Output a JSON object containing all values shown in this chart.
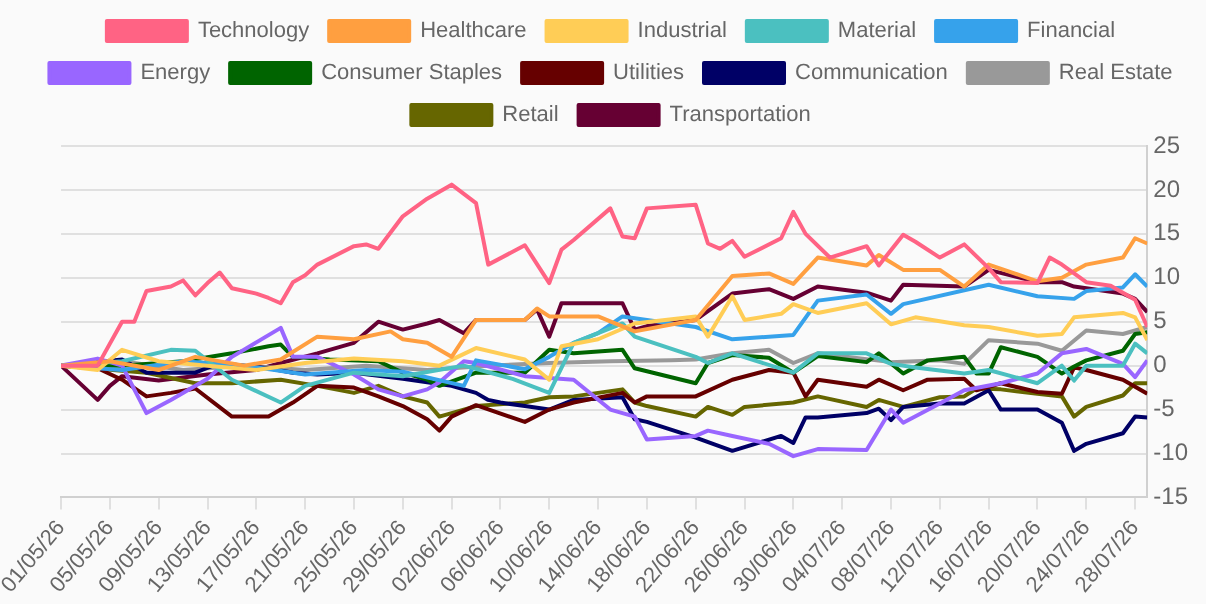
{
  "chart_data": {
    "type": "line",
    "legend": "top",
    "grid": "y",
    "marker": "none",
    "line_style": "solid",
    "xlim": [
      "--05-01",
      "--07-29"
    ],
    "xticks": [
      {
        "value": "--05-01",
        "label": "01/05/26"
      },
      {
        "value": "--05-05",
        "label": "05/05/26"
      },
      {
        "value": "--05-09",
        "label": "09/05/26"
      },
      {
        "value": "--05-13",
        "label": "13/05/26"
      },
      {
        "value": "--05-17",
        "label": "17/05/26"
      },
      {
        "value": "--05-21",
        "label": "21/05/26"
      },
      {
        "value": "--05-25",
        "label": "25/05/26"
      },
      {
        "value": "--05-29",
        "label": "29/05/26"
      },
      {
        "value": "--06-02",
        "label": "02/06/26"
      },
      {
        "value": "--06-06",
        "label": "06/06/26"
      },
      {
        "value": "--06-10",
        "label": "10/06/26"
      },
      {
        "value": "--06-14",
        "label": "14/06/26"
      },
      {
        "value": "--06-18",
        "label": "18/06/26"
      },
      {
        "value": "--06-22",
        "label": "22/06/26"
      },
      {
        "value": "--06-26",
        "label": "26/06/26"
      },
      {
        "value": "--06-30",
        "label": "30/06/26"
      },
      {
        "value": "--07-04",
        "label": "04/07/26"
      },
      {
        "value": "--07-08",
        "label": "08/07/26"
      },
      {
        "value": "--07-12",
        "label": "12/07/26"
      },
      {
        "value": "--07-16",
        "label": "16/07/26"
      },
      {
        "value": "--07-20",
        "label": "20/07/26"
      },
      {
        "value": "--07-24",
        "label": "24/07/26"
      },
      {
        "value": "--07-28",
        "label": "28/07/26"
      }
    ],
    "ylim": [
      -15,
      25
    ],
    "yticks": [
      -15,
      -10,
      -5,
      0,
      5,
      10,
      15,
      20,
      25
    ],
    "series": [
      {
        "name": "Technology",
        "color": "#ff6384",
        "x": [
          "--05-01",
          "--05-04",
          "--05-06",
          "--05-07",
          "--05-08",
          "--05-10",
          "--05-11",
          "--05-12",
          "--05-13",
          "--05-14",
          "--05-15",
          "--05-17",
          "--05-18",
          "--05-19",
          "--05-20",
          "--05-21",
          "--05-22",
          "--05-25",
          "--05-26",
          "--05-27",
          "--05-29",
          "--05-31",
          "--06-01",
          "--06-02",
          "--06-04",
          "--06-05",
          "--06-08",
          "--06-10",
          "--06-11",
          "--06-12",
          "--06-15",
          "--06-16",
          "--06-17",
          "--06-18",
          "--06-22",
          "--06-23",
          "--06-24",
          "--06-25",
          "--06-26",
          "--06-29",
          "--06-30",
          "--07-01",
          "--07-03",
          "--07-06",
          "--07-07",
          "--07-09",
          "--07-10",
          "--07-12",
          "--07-14",
          "--07-16",
          "--07-17",
          "--07-20",
          "--07-21",
          "--07-22",
          "--07-24",
          "--07-26",
          "--07-28",
          "--07-29"
        ],
        "values": [
          0,
          0,
          5,
          5,
          8.5,
          9,
          9.7,
          8,
          9.4,
          10.6,
          8.8,
          8.2,
          7.7,
          7.1,
          9.5,
          10.3,
          11.5,
          13.6,
          13.8,
          13.3,
          17,
          19,
          19.8,
          20.6,
          18.5,
          11.5,
          13.7,
          9.4,
          13.2,
          14.3,
          17.9,
          14.7,
          14.5,
          17.9,
          18.3,
          13.9,
          13.3,
          14.2,
          12.4,
          14.5,
          17.5,
          15,
          12.3,
          13.6,
          11.4,
          14.9,
          14.1,
          12.3,
          13.8,
          11.1,
          9.5,
          9.4,
          12.3,
          11.5,
          9.5,
          9.1,
          7.5,
          4.4
        ]
      },
      {
        "name": "Healthcare",
        "color": "#ff9f40",
        "x": [
          "--05-01",
          "--05-05",
          "--05-09",
          "--05-12",
          "--05-16",
          "--05-19",
          "--05-22",
          "--05-25",
          "--05-28",
          "--05-29",
          "--05-31",
          "--06-02",
          "--06-04",
          "--06-08",
          "--06-09",
          "--06-10",
          "--06-14",
          "--06-17",
          "--06-22",
          "--06-25",
          "--06-28",
          "--06-30",
          "--07-02",
          "--07-06",
          "--07-07",
          "--07-09",
          "--07-12",
          "--07-14",
          "--07-16",
          "--07-20",
          "--07-22",
          "--07-24",
          "--07-27",
          "--07-28",
          "--07-29"
        ],
        "values": [
          0,
          0.5,
          -0.5,
          1,
          0,
          0.7,
          3.3,
          3,
          3.9,
          3,
          2.6,
          1,
          5.2,
          5.2,
          6.5,
          5.6,
          5.6,
          3.9,
          5.2,
          10.2,
          10.5,
          9.3,
          12.3,
          11.4,
          12.6,
          10.9,
          10.9,
          9,
          11.5,
          9.6,
          10,
          11.5,
          12.3,
          14.5,
          13.9
        ]
      },
      {
        "name": "Industrial",
        "color": "#ffcd56",
        "x": [
          "--05-01",
          "--05-04",
          "--05-06",
          "--05-09",
          "--05-13",
          "--05-17",
          "--05-21",
          "--05-25",
          "--05-29",
          "--06-01",
          "--06-04",
          "--06-08",
          "--06-10",
          "--06-11",
          "--06-14",
          "--06-17",
          "--06-22",
          "--06-23",
          "--06-25",
          "--06-26",
          "--06-29",
          "--06-30",
          "--07-02",
          "--07-06",
          "--07-08",
          "--07-10",
          "--07-14",
          "--07-16",
          "--07-20",
          "--07-22",
          "--07-23",
          "--07-27",
          "--07-28",
          "--07-29"
        ],
        "values": [
          0,
          -0.5,
          1.8,
          0.5,
          0,
          -0.5,
          0.3,
          0.8,
          0.5,
          0,
          2,
          0.7,
          -1.6,
          2.2,
          3,
          4.8,
          5.6,
          3.3,
          7.9,
          5.2,
          5.9,
          7,
          6,
          7.1,
          4.7,
          5.5,
          4.6,
          4.4,
          3.4,
          3.6,
          5.5,
          6,
          5.5,
          2.9
        ]
      },
      {
        "name": "Material",
        "color": "#4bc0c0",
        "x": [
          "--05-01",
          "--05-06",
          "--05-10",
          "--05-12",
          "--05-15",
          "--05-19",
          "--05-21",
          "--05-25",
          "--05-29",
          "--06-03",
          "--06-07",
          "--06-10",
          "--06-12",
          "--06-16",
          "--06-17",
          "--06-22",
          "--06-23",
          "--06-25",
          "--06-30",
          "--07-02",
          "--07-06",
          "--07-08",
          "--07-10",
          "--07-14",
          "--07-16",
          "--07-20",
          "--07-22",
          "--07-23",
          "--07-24",
          "--07-27",
          "--07-28",
          "--07-29"
        ],
        "values": [
          0,
          0.5,
          1.8,
          1.7,
          -1.6,
          -4.2,
          -2.3,
          -0.8,
          -1.2,
          0,
          -1.5,
          -3.1,
          2.6,
          4.8,
          3.3,
          1,
          0.3,
          1.4,
          -0.8,
          1.4,
          1.4,
          0.2,
          -0.2,
          -0.9,
          -0.5,
          -2,
          0,
          -1.7,
          0,
          0,
          2.5,
          1.4
        ]
      },
      {
        "name": "Financial",
        "color": "#36a2eb",
        "x": [
          "--05-01",
          "--05-06",
          "--05-11",
          "--05-16",
          "--05-21",
          "--05-26",
          "--05-29",
          "--06-03",
          "--06-04",
          "--06-08",
          "--06-10",
          "--06-12",
          "--06-14",
          "--06-16",
          "--06-22",
          "--06-25",
          "--06-30",
          "--07-02",
          "--07-06",
          "--07-08",
          "--07-09",
          "--07-16",
          "--07-20",
          "--07-23",
          "--07-24",
          "--07-27",
          "--07-28",
          "--07-29"
        ],
        "values": [
          0,
          -0.5,
          0.5,
          0,
          -1,
          -0.5,
          -0.7,
          -2.3,
          0.6,
          -0.4,
          1,
          2.6,
          3.7,
          5.6,
          4.4,
          3,
          3.5,
          7.4,
          8.1,
          5.9,
          7,
          9.2,
          7.9,
          7.6,
          8.5,
          8.9,
          10.4,
          9
        ]
      },
      {
        "name": "Energy",
        "color": "#9966ff",
        "x": [
          "--05-01",
          "--05-04",
          "--05-06",
          "--05-08",
          "--05-10",
          "--05-13",
          "--05-15",
          "--05-19",
          "--05-20",
          "--05-22",
          "--05-25",
          "--05-27",
          "--05-29",
          "--05-31",
          "--06-01",
          "--06-03",
          "--06-04",
          "--06-08",
          "--06-12",
          "--06-15",
          "--06-17",
          "--06-18",
          "--06-22",
          "--06-23",
          "--06-25",
          "--06-28",
          "--06-30",
          "--07-02",
          "--07-06",
          "--07-07",
          "--07-08",
          "--07-09",
          "--07-12",
          "--07-14",
          "--07-17",
          "--07-20",
          "--07-22",
          "--07-24",
          "--07-27",
          "--07-28",
          "--07-29"
        ],
        "values": [
          0,
          0.8,
          0,
          -5.4,
          -3.9,
          -1.5,
          1,
          4.3,
          1,
          1,
          -1,
          -2.7,
          -3.5,
          -2.7,
          -1.9,
          0.5,
          0.3,
          -1.2,
          -1.6,
          -5,
          -5.8,
          -8.4,
          -8,
          -7.4,
          -8,
          -8.9,
          -10.3,
          -9.5,
          -9.6,
          -7.3,
          -5,
          -6.5,
          -4.3,
          -2.8,
          -2,
          -0.9,
          1.4,
          1.9,
          0.2,
          -1.3,
          0.6
        ]
      },
      {
        "name": "Consumer Staples",
        "color": "#006400",
        "x": [
          "--05-01",
          "--05-06",
          "--05-11",
          "--05-15",
          "--05-18",
          "--05-19",
          "--05-20",
          "--05-23",
          "--05-27",
          "--05-29",
          "--05-31",
          "--06-01",
          "--06-04",
          "--06-08",
          "--06-10",
          "--06-12",
          "--06-16",
          "--06-17",
          "--06-22",
          "--06-23",
          "--06-25",
          "--06-28",
          "--06-30",
          "--07-02",
          "--07-06",
          "--07-07",
          "--07-09",
          "--07-11",
          "--07-14",
          "--07-15",
          "--07-16",
          "--07-17",
          "--07-20",
          "--07-22",
          "--07-23",
          "--07-24",
          "--07-27",
          "--07-28",
          "--07-29"
        ],
        "values": [
          0,
          0,
          0.5,
          1.4,
          2.2,
          2.4,
          1,
          0.7,
          0.5,
          -0.8,
          -1.6,
          -2.3,
          -0.8,
          -0.8,
          1.8,
          1.4,
          1.8,
          -0.3,
          -2,
          0.3,
          1.2,
          0.9,
          -0.8,
          1.1,
          0.4,
          1.4,
          -0.9,
          0.6,
          1,
          -0.9,
          -0.9,
          2.1,
          1,
          -0.9,
          -0.1,
          0.6,
          1.7,
          3.6,
          3.8
        ]
      },
      {
        "name": "Utilities",
        "color": "#660000",
        "x": [
          "--05-01",
          "--05-04",
          "--05-06",
          "--05-08",
          "--05-10",
          "--05-12",
          "--05-15",
          "--05-18",
          "--05-20",
          "--05-22",
          "--05-25",
          "--05-27",
          "--05-29",
          "--05-31",
          "--06-01",
          "--06-02",
          "--06-04",
          "--06-08",
          "--06-10",
          "--06-12",
          "--06-16",
          "--06-17",
          "--06-18",
          "--06-22",
          "--06-25",
          "--06-28",
          "--06-30",
          "--07-01",
          "--07-02",
          "--07-06",
          "--07-07",
          "--07-09",
          "--07-11",
          "--07-14",
          "--07-15",
          "--07-17",
          "--07-20",
          "--07-22",
          "--07-23",
          "--07-24",
          "--07-27",
          "--07-29"
        ],
        "values": [
          0,
          -0.3,
          -1.6,
          -3.5,
          -3.1,
          -2.6,
          -5.8,
          -5.8,
          -4.2,
          -2.3,
          -2.5,
          -3.5,
          -4.6,
          -6.1,
          -7.4,
          -5.8,
          -4.5,
          -6.4,
          -5,
          -4.2,
          -3.1,
          -4.2,
          -3.5,
          -3.5,
          -1.6,
          -0.5,
          -0.8,
          -3.5,
          -1.6,
          -2.4,
          -1.6,
          -2.8,
          -1.6,
          -1.5,
          -2.8,
          -2,
          -3,
          -3.2,
          -0.2,
          -0.5,
          -1.6,
          -3.2
        ]
      },
      {
        "name": "Communication",
        "color": "#000066",
        "x": [
          "--05-01",
          "--05-06",
          "--05-08",
          "--05-12",
          "--05-14",
          "--05-18",
          "--05-20",
          "--05-22",
          "--05-25",
          "--05-29",
          "--05-31",
          "--06-02",
          "--06-04",
          "--06-05",
          "--06-06",
          "--06-08",
          "--06-10",
          "--06-12",
          "--06-16",
          "--06-17",
          "--06-18",
          "--06-22",
          "--06-25",
          "--06-29",
          "--06-30",
          "--07-01",
          "--07-02",
          "--07-06",
          "--07-07",
          "--07-08",
          "--07-09",
          "--07-12",
          "--07-14",
          "--07-16",
          "--07-17",
          "--07-20",
          "--07-22",
          "--07-23",
          "--07-24",
          "--07-27",
          "--07-28",
          "--07-29"
        ],
        "values": [
          0,
          0.7,
          -0.8,
          -0.8,
          0.3,
          -0.3,
          -0.8,
          -1,
          -0.8,
          -1.5,
          -1.9,
          -2.3,
          -3.1,
          -3.9,
          -4.2,
          -4.6,
          -5,
          -3.9,
          -3.6,
          -6.1,
          -6.4,
          -8.2,
          -9.7,
          -8,
          -8.8,
          -5.9,
          -5.9,
          -5.4,
          -4.9,
          -6.2,
          -4.7,
          -4.3,
          -4.3,
          -2.8,
          -5,
          -5,
          -6.5,
          -9.7,
          -8.9,
          -7.7,
          -5.8,
          -5.9
        ]
      },
      {
        "name": "Real Estate",
        "color": "#999999",
        "x": [
          "--05-01",
          "--05-06",
          "--05-11",
          "--05-16",
          "--05-21",
          "--05-26",
          "--05-31",
          "--06-05",
          "--06-10",
          "--06-15",
          "--06-20",
          "--06-22",
          "--06-25",
          "--06-28",
          "--06-30",
          "--07-02",
          "--07-08",
          "--07-12",
          "--07-14",
          "--07-16",
          "--07-20",
          "--07-22",
          "--07-24",
          "--07-27",
          "--07-28",
          "--07-29"
        ],
        "values": [
          0,
          0.5,
          -0.5,
          0,
          -0.5,
          0,
          -0.5,
          0,
          0.3,
          0.5,
          0.6,
          0.7,
          1.4,
          1.8,
          0.3,
          1.4,
          0.4,
          0.6,
          0.2,
          2.9,
          2.5,
          1.7,
          4,
          3.6,
          4,
          4.4
        ]
      },
      {
        "name": "Retail",
        "color": "#666600",
        "x": [
          "--05-01",
          "--05-08",
          "--05-12",
          "--05-15",
          "--05-19",
          "--05-22",
          "--05-25",
          "--05-27",
          "--05-29",
          "--05-31",
          "--06-01",
          "--06-04",
          "--06-08",
          "--06-10",
          "--06-12",
          "--06-16",
          "--06-17",
          "--06-18",
          "--06-22",
          "--06-23",
          "--06-25",
          "--06-26",
          "--06-30",
          "--07-02",
          "--07-06",
          "--07-07",
          "--07-09",
          "--07-12",
          "--07-14",
          "--07-15",
          "--07-17",
          "--07-20",
          "--07-22",
          "--07-23",
          "--07-24",
          "--07-27",
          "--07-28",
          "--07-29"
        ],
        "values": [
          0,
          -0.8,
          -2,
          -2,
          -1.6,
          -2.3,
          -3.1,
          -2.3,
          -3.5,
          -4.2,
          -5.8,
          -4.6,
          -4.2,
          -3.6,
          -3.5,
          -2.7,
          -4.2,
          -4.6,
          -5.8,
          -4.7,
          -5.6,
          -4.7,
          -4.2,
          -3.5,
          -4.7,
          -3.9,
          -4.7,
          -3.6,
          -3.5,
          -2.6,
          -2.7,
          -3.2,
          -3.5,
          -5.8,
          -4.7,
          -3.4,
          -2,
          -2
        ]
      },
      {
        "name": "Transportation",
        "color": "#660033",
        "x": [
          "--05-01",
          "--05-04",
          "--05-05",
          "--05-06",
          "--05-09",
          "--05-13",
          "--05-17",
          "--05-19",
          "--05-22",
          "--05-25",
          "--05-27",
          "--05-29",
          "--05-31",
          "--06-01",
          "--06-03",
          "--06-04",
          "--06-08",
          "--06-09",
          "--06-10",
          "--06-11",
          "--06-16",
          "--06-17",
          "--06-18",
          "--06-22",
          "--06-25",
          "--06-28",
          "--06-30",
          "--07-02",
          "--07-06",
          "--07-08",
          "--07-09",
          "--07-14",
          "--07-16",
          "--07-20",
          "--07-22",
          "--07-23",
          "--07-27",
          "--07-28",
          "--07-29"
        ],
        "values": [
          0,
          -3.9,
          -2.3,
          -1.2,
          -1.7,
          -1,
          -0.5,
          0.3,
          1.4,
          2.6,
          5,
          4.1,
          4.8,
          5.2,
          3.7,
          5.2,
          5.2,
          6.4,
          3.3,
          7.1,
          7.1,
          4.1,
          4.5,
          5.2,
          8.2,
          8.7,
          7.6,
          9,
          8.3,
          7.4,
          9.2,
          9,
          10.9,
          9.5,
          9.5,
          9,
          8.2,
          7.6,
          6.1
        ]
      }
    ]
  }
}
